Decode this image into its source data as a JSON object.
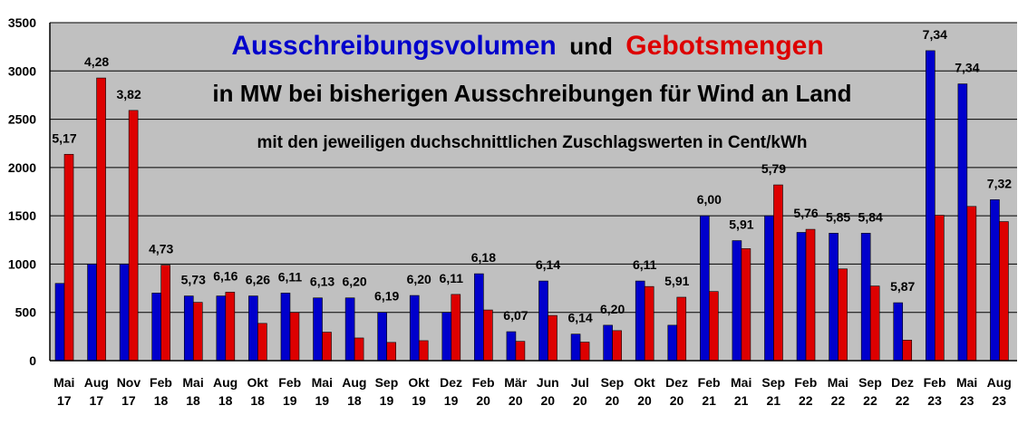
{
  "chart_data": {
    "type": "bar",
    "title_part1": "Ausschreibungsvolumen",
    "title_connector": "und",
    "title_part2": "Gebotsmengen",
    "subtitle": "in MW bei bisherigen Ausschreibungen für Wind an Land",
    "annotation": "mit den jeweiligen duchschnittlichen Zuschlagswerten in Cent/kWh",
    "ylim": [
      0,
      3500
    ],
    "yticks": [
      0,
      500,
      1000,
      1500,
      2000,
      2500,
      3000,
      3500
    ],
    "grid": true,
    "legend": "none",
    "categories": [
      [
        "Mai",
        "17"
      ],
      [
        "Aug",
        "17"
      ],
      [
        "Nov",
        "17"
      ],
      [
        "Feb",
        "18"
      ],
      [
        "Mai",
        "18"
      ],
      [
        "Aug",
        "18"
      ],
      [
        "Okt",
        "18"
      ],
      [
        "Feb",
        "19"
      ],
      [
        "Mai",
        "19"
      ],
      [
        "Aug",
        "18"
      ],
      [
        "Sep",
        "19"
      ],
      [
        "Okt",
        "19"
      ],
      [
        "Dez",
        "19"
      ],
      [
        "Feb",
        "20"
      ],
      [
        "Mär",
        "20"
      ],
      [
        "Jun",
        "20"
      ],
      [
        "Jul",
        "20"
      ],
      [
        "Sep",
        "20"
      ],
      [
        "Okt",
        "20"
      ],
      [
        "Dez",
        "20"
      ],
      [
        "Feb",
        "21"
      ],
      [
        "Mai",
        "21"
      ],
      [
        "Sep",
        "21"
      ],
      [
        "Feb",
        "22"
      ],
      [
        "Mai",
        "22"
      ],
      [
        "Sep",
        "22"
      ],
      [
        "Dez",
        "22"
      ],
      [
        "Feb",
        "23"
      ],
      [
        "Mai",
        "23"
      ],
      [
        "Aug",
        "23"
      ]
    ],
    "series": [
      {
        "color": "#0000cc",
        "values": [
          800,
          1000,
          1000,
          700,
          670,
          670,
          670,
          700,
          650,
          650,
          500,
          675,
          500,
          900,
          300,
          825,
          275,
          367,
          825,
          367,
          1500,
          1243,
          1500,
          1328,
          1320,
          1320,
          600,
          3210,
          2866,
          1667
        ]
      },
      {
        "color": "#dd0000",
        "values": [
          2137,
          2927,
          2591,
          989,
          604,
          709,
          386,
          499,
          295,
          235,
          189,
          207,
          686,
          525,
          200,
          468,
          192,
          311,
          768,
          657,
          716,
          1160,
          1820,
          1360,
          950,
          773,
          213,
          1506,
          1597,
          1440
        ]
      }
    ],
    "data_labels": [
      "5,17",
      "4,28",
      "3,82",
      "4,73",
      "5,73",
      "6,16",
      "6,26",
      "6,11",
      "6,13",
      "6,20",
      "6,19",
      "6,20",
      "6,11",
      "6,18",
      "6,07",
      "6,14",
      "6,14",
      "6,20",
      "6,11",
      "5,91",
      "6,00",
      "5,91",
      "5,79",
      "5,76",
      "5,85",
      "5,84",
      "5,87",
      "7,34",
      "7,34",
      "7,32"
    ],
    "plot_background": "#c0c0c0",
    "title_color_1": "#0000cc",
    "title_color_2": "#dd0000"
  }
}
